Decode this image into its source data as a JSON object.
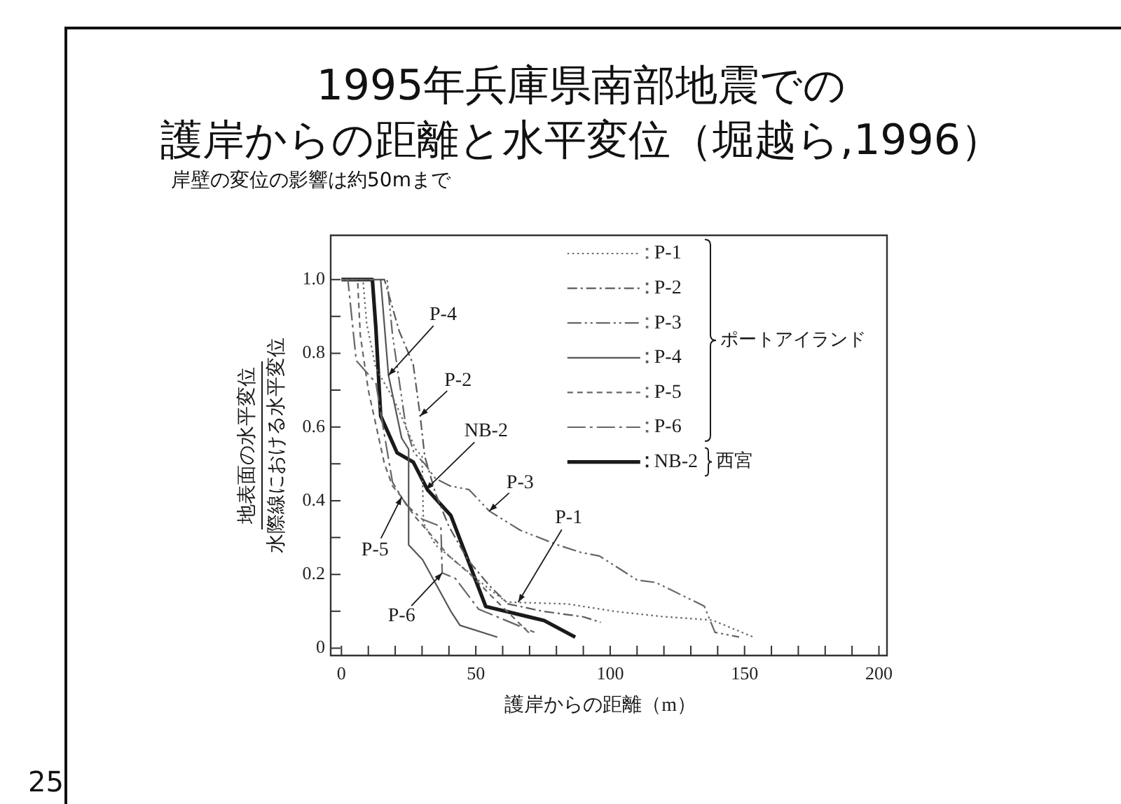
{
  "chart_data": {
    "type": "line",
    "title": "1995年兵庫県南部地震での護岸からの距離と水平変位（堀越ら,1996）",
    "subtitle": "岸壁の変位の影響は約50mまで",
    "xlabel": "護岸からの距離（m）",
    "ylabel": "地表面の水平変位水際線における水平変位",
    "series": [
      {
        "name": "P-1",
        "color": "#6a6a6a",
        "line_style": "dotted",
        "x": [
          0,
          8,
          9.4,
          12.8,
          19.8,
          27.6,
          30,
          30.5,
          35,
          45,
          55,
          61.5,
          84,
          101.5,
          119,
          138,
          153
        ],
        "values": [
          1,
          1,
          0.88,
          0.76,
          0.67,
          0.54,
          0.52,
          0.34,
          0.28,
          0.22,
          0.16,
          0.125,
          0.12,
          0.1,
          0.086,
          0.076,
          0.031
        ]
      },
      {
        "name": "P-2",
        "color": "#5a5a5a",
        "line_style": "dashed",
        "x": [
          0,
          16,
          21.5,
          26.7,
          29.3,
          31,
          35,
          40,
          47,
          55,
          62,
          75,
          90,
          96.5
        ],
        "values": [
          1,
          1,
          0.86,
          0.77,
          0.63,
          0.52,
          0.42,
          0.33,
          0.24,
          0.17,
          0.12,
          0.1,
          0.085,
          0.07
        ]
      },
      {
        "name": "P-3",
        "color": "#666666",
        "line_style": "dashed",
        "x": [
          0,
          17,
          19,
          22,
          24,
          27,
          31,
          35,
          40.5,
          47.5,
          55,
          66.5,
          80.5,
          89,
          96,
          110,
          117,
          135,
          139,
          148
        ],
        "values": [
          1,
          1,
          0.85,
          0.7,
          0.6,
          0.53,
          0.5,
          0.46,
          0.44,
          0.43,
          0.372,
          0.32,
          0.28,
          0.26,
          0.25,
          0.185,
          0.178,
          0.114,
          0.043,
          0.03
        ]
      },
      {
        "name": "P-4",
        "color": "#555555",
        "line_style": "solid",
        "x": [
          0,
          14.6,
          17.5,
          22.4,
          25,
          25,
          30.2,
          40.7,
          44.1,
          58
        ],
        "values": [
          1,
          1,
          0.74,
          0.57,
          0.54,
          0.28,
          0.24,
          0.1,
          0.062,
          0.03
        ]
      },
      {
        "name": "P-5",
        "color": "#666666",
        "line_style": "dashed",
        "x": [
          0,
          6,
          7,
          10,
          13,
          16,
          19,
          22.4,
          27,
          33,
          40,
          48,
          56,
          63,
          70
        ],
        "values": [
          1,
          1,
          0.85,
          0.7,
          0.6,
          0.5,
          0.44,
          0.41,
          0.36,
          0.31,
          0.25,
          0.2,
          0.14,
          0.09,
          0.04
        ]
      },
      {
        "name": "P-6",
        "color": "#666666",
        "line_style": "dashed",
        "x": [
          0,
          2.4,
          5.5,
          12.8,
          15.5,
          19,
          24,
          30,
          37,
          37.5,
          42.4,
          51,
          71.8
        ],
        "values": [
          1,
          1,
          0.78,
          0.72,
          0.6,
          0.45,
          0.39,
          0.35,
          0.33,
          0.204,
          0.189,
          0.106,
          0.043
        ]
      },
      {
        "name": "NB-2",
        "color": "#1a1a1a",
        "line_style": "solid",
        "x": [
          0,
          11.5,
          12.8,
          14.6,
          20.7,
          26.7,
          32,
          40.7,
          53.7,
          75.4,
          87
        ],
        "values": [
          1,
          1,
          0.87,
          0.63,
          0.53,
          0.505,
          0.43,
          0.36,
          0.113,
          0.075,
          0.03
        ]
      }
    ],
    "xlim": [
      -4,
      203
    ],
    "xticks": [
      0,
      {
        "value": 10,
        "label": null
      },
      {
        "value": 20,
        "label": null
      },
      {
        "value": 30,
        "label": null
      },
      {
        "value": 40,
        "label": null
      },
      50,
      {
        "value": 60,
        "label": null
      },
      {
        "value": 70,
        "label": null
      },
      {
        "value": 80,
        "label": null
      },
      {
        "value": 90,
        "label": null
      },
      100,
      {
        "value": 110,
        "label": null
      },
      {
        "value": 120,
        "label": null
      },
      {
        "value": 130,
        "label": null
      },
      {
        "value": 140,
        "label": null
      },
      150,
      {
        "value": 160,
        "label": null
      },
      {
        "value": 170,
        "label": null
      },
      {
        "value": 180,
        "label": null
      },
      {
        "value": 190,
        "label": null
      },
      200
    ],
    "ylim": [
      -0.02,
      1.12
    ],
    "yticks": [
      0,
      {
        "value": 0.1,
        "label": null
      },
      0.2,
      {
        "value": 0.3,
        "label": null
      },
      0.4,
      {
        "value": 0.5,
        "label": null
      },
      0.6,
      {
        "value": 0.7,
        "label": null
      },
      0.8,
      {
        "value": 0.9,
        "label": null
      },
      {
        "value": 1,
        "label": "1.0"
      }
    ],
    "legend": "top right",
    "annotations": [
      {
        "text": "P-4",
        "x": 17.5,
        "y": 0.74
      },
      {
        "text": "P-2",
        "x": 29.3,
        "y": 0.63
      },
      {
        "text": "NB-2",
        "x": 31.4,
        "y": 0.43
      },
      {
        "text": "P-3",
        "x": 55,
        "y": 0.372
      },
      {
        "text": "P-1",
        "x": 65.8,
        "y": 0.125
      },
      {
        "text": "P-5",
        "x": 22.4,
        "y": 0.41
      },
      {
        "text": "P-6",
        "x": 37.5,
        "y": 0.204
      },
      "ポートアイランド",
      "西宮",
      "25"
    ]
  }
}
